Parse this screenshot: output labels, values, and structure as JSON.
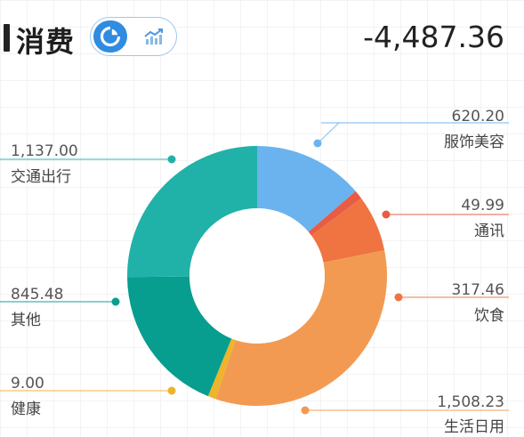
{
  "header": {
    "title": "消费",
    "total": "-4,487.36",
    "view_toggle": {
      "pie_icon": "pie-chart-icon",
      "trend_icon": "trend-chart-icon",
      "active": "pie",
      "active_color": "#2f8ce0"
    }
  },
  "chart_data": {
    "type": "pie",
    "donut": true,
    "title": "",
    "slices": [
      {
        "name": "服饰美容",
        "value_label": "620.20",
        "value": 620.2,
        "color": "#6ab3ee"
      },
      {
        "name": "通讯",
        "value_label": "49.99",
        "value": 49.99,
        "color": "#e85c45"
      },
      {
        "name": "饮食",
        "value_label": "317.46",
        "value": 317.46,
        "color": "#ef7442"
      },
      {
        "name": "生活日用",
        "value_label": "1,508.23",
        "value": 1508.23,
        "color": "#f39a52"
      },
      {
        "name": "健康",
        "value_label": "9.00",
        "value": 9.0,
        "color": "#eeb42c"
      },
      {
        "name": "其他",
        "value_label": "845.48",
        "value": 845.48,
        "color": "#079d8f"
      },
      {
        "name": "交通出行",
        "value_label": "1,137.00",
        "value": 1137.0,
        "color": "#20b2a8"
      }
    ]
  }
}
